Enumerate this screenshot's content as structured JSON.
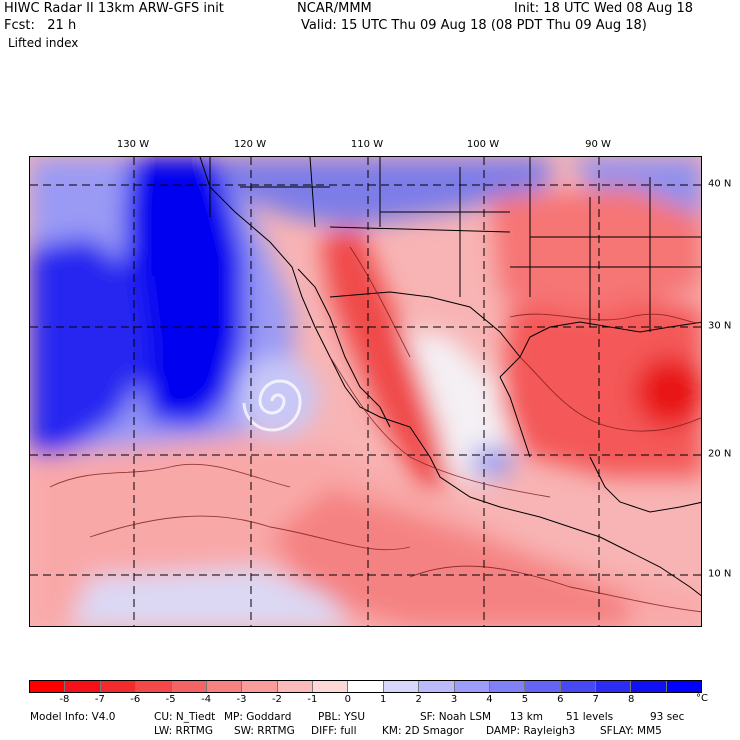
{
  "header": {
    "line1_left": "HIWC Radar II 13km ARW-GFS init",
    "line1_mid": "NCAR/MMM",
    "line1_right": "Init: 18 UTC Wed 08 Aug 18",
    "line2_left": "Fcst:   21 h",
    "line2_right": "Valid: 15 UTC Thu 09 Aug 18 (08 PDT Thu 09 Aug 18)",
    "field": "Lifted index"
  },
  "map": {
    "region": "Eastern Pacific, western North America, Mexico and Gulf of Mexico",
    "longitude_labels": [
      "130 W",
      "120 W",
      "110 W",
      "100 W",
      "90 W"
    ],
    "latitude_labels": [
      "40 N",
      "30 N",
      "20 N",
      "10 N"
    ],
    "graticule": "dashed"
  },
  "colorbar": {
    "unit": "°C",
    "ticks": [
      "-8",
      "-7",
      "-6",
      "-5",
      "-4",
      "-3",
      "-2",
      "-1",
      "0",
      "1",
      "2",
      "3",
      "4",
      "5",
      "6",
      "7",
      "8"
    ],
    "colors": [
      "#ff0000",
      "#f5101a",
      "#f22c2c",
      "#f54848",
      "#f56464",
      "#f78080",
      "#fa9c9c",
      "#fcbaba",
      "#fed7d7",
      "#ffffff",
      "#d7d7fe",
      "#baba fc",
      "#9c9cfa",
      "#8080f7",
      "#6464f5",
      "#4848f5",
      "#2c2cf2",
      "#1010f5",
      "#0000ff"
    ]
  },
  "footer": {
    "line1": [
      "Model Info: V4.0",
      "CU: N_Tiedt",
      "MP: Goddard",
      "PBL: YSU",
      "SF: Noah LSM",
      "13 km",
      "51 levels",
      "93 sec"
    ],
    "line2": [
      "LW: RRTMG",
      "SW: RRTMG",
      "DIFF: full",
      "KM: 2D Smagor",
      "DAMP: Rayleigh3",
      "SFLAY: MM5"
    ]
  }
}
